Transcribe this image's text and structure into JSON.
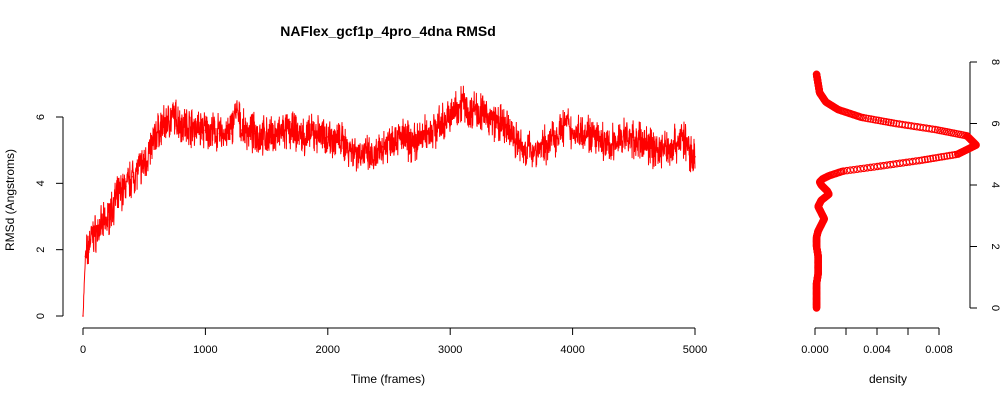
{
  "colors": {
    "series": "#ff0000",
    "axis": "#000000",
    "background": "#ffffff"
  },
  "chart_data": [
    {
      "type": "line",
      "title": "NAFlex_gcf1p_4pro_4dna RMSd",
      "xlabel": "Time (frames)",
      "ylabel": "RMSd (Angstroms)",
      "xlim": [
        0,
        5000
      ],
      "ylim": [
        0,
        7.5
      ],
      "x_ticks": [
        "0",
        "1000",
        "2000",
        "3000",
        "4000",
        "5000"
      ],
      "y_ticks": [
        "0",
        "2",
        "4",
        "6"
      ],
      "grid": false,
      "legend": "none",
      "series": [
        {
          "x": [
            0,
            20,
            40,
            60,
            80,
            100,
            150,
            200,
            250,
            300,
            350,
            400,
            450,
            500,
            550,
            600,
            650,
            700,
            750,
            800,
            900,
            1000,
            1100,
            1200,
            1250,
            1300,
            1400,
            1500,
            1600,
            1700,
            1800,
            1900,
            2000,
            2100,
            2200,
            2300,
            2380,
            2450,
            2500,
            2600,
            2700,
            2800,
            2900,
            3000,
            3100,
            3150,
            3200,
            3300,
            3400,
            3500,
            3600,
            3700,
            3800,
            3900,
            3950,
            4000,
            4100,
            4200,
            4300,
            4400,
            4500,
            4600,
            4700,
            4800,
            4900,
            4950,
            5000
          ],
          "values": [
            0.0,
            1.8,
            2.0,
            2.3,
            2.4,
            2.5,
            2.7,
            2.9,
            3.4,
            3.7,
            3.9,
            4.2,
            4.4,
            4.6,
            5.0,
            5.5,
            5.7,
            5.9,
            6.0,
            5.8,
            5.7,
            5.6,
            5.5,
            5.5,
            6.2,
            5.6,
            5.5,
            5.4,
            5.5,
            5.6,
            5.4,
            5.5,
            5.4,
            5.3,
            5.0,
            4.9,
            4.7,
            5.1,
            5.3,
            5.4,
            5.2,
            5.5,
            5.7,
            6.0,
            6.5,
            6.1,
            6.3,
            6.0,
            5.8,
            5.5,
            5.0,
            5.0,
            5.2,
            5.6,
            5.8,
            5.5,
            5.6,
            5.3,
            5.1,
            5.4,
            5.3,
            5.2,
            5.0,
            5.1,
            5.4,
            5.0,
            4.8
          ]
        }
      ]
    },
    {
      "type": "scatter",
      "xlabel": "density",
      "ylabel": "",
      "xlim": [
        0,
        0.01
      ],
      "ylim": [
        0,
        8
      ],
      "x_ticks": [
        "0.000",
        "0.004",
        "0.008"
      ],
      "y_ticks": [
        "0",
        "2",
        "4",
        "6",
        "8"
      ],
      "grid": false,
      "legend": "none",
      "series": [
        {
          "x": [
            0.0001,
            0.0001,
            0.0001,
            0.0001,
            0.0002,
            0.0002,
            0.0002,
            0.0001,
            0.0001,
            0.0002,
            0.0004,
            0.0006,
            0.0004,
            0.0002,
            0.0004,
            0.0009,
            0.0008,
            0.0006,
            0.0004,
            0.0003,
            0.0005,
            0.0009,
            0.0018,
            0.004,
            0.0068,
            0.0092,
            0.0104,
            0.0098,
            0.0078,
            0.0052,
            0.003,
            0.0015,
            0.0007,
            0.0003,
            0.0002,
            0.0001
          ],
          "y": [
            0.0,
            0.2,
            0.5,
            0.8,
            1.1,
            1.4,
            1.7,
            2.0,
            2.3,
            2.5,
            2.7,
            2.9,
            3.1,
            3.3,
            3.5,
            3.7,
            3.8,
            3.9,
            4.0,
            4.1,
            4.2,
            4.3,
            4.45,
            4.6,
            4.8,
            5.0,
            5.3,
            5.6,
            5.8,
            6.0,
            6.2,
            6.45,
            6.7,
            7.0,
            7.3,
            7.6
          ]
        }
      ]
    }
  ]
}
